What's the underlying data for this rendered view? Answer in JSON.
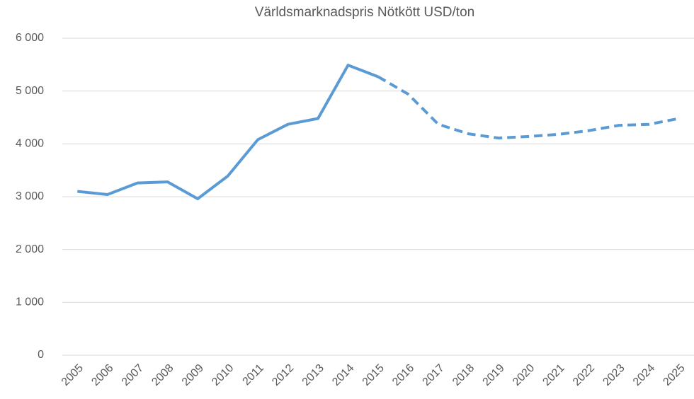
{
  "chart_data": {
    "type": "line",
    "title": "Världsmarknadspris Nötkött USD/ton",
    "categories": [
      "2005",
      "2006",
      "2007",
      "2008",
      "2009",
      "2010",
      "2011",
      "2012",
      "2013",
      "2014",
      "2015",
      "2016",
      "2017",
      "2018",
      "2019",
      "2020",
      "2021",
      "2022",
      "2023",
      "2024",
      "2025"
    ],
    "series": [
      {
        "color": "#5b9bd5",
        "dashed": false,
        "values": [
          3100,
          3040,
          3260,
          3280,
          2960,
          3390,
          4080,
          4370,
          4480,
          5490,
          5270,
          null,
          null,
          null,
          null,
          null,
          null,
          null,
          null,
          null,
          null
        ]
      },
      {
        "color": "#5b9bd5",
        "dashed": true,
        "values": [
          null,
          null,
          null,
          null,
          null,
          null,
          null,
          null,
          null,
          null,
          5270,
          4940,
          4370,
          4190,
          4110,
          4140,
          4180,
          4250,
          4350,
          4370,
          4480
        ]
      }
    ],
    "ylim": [
      0,
      6000
    ],
    "yticks": [
      0,
      {
        "value": 1000,
        "label": "1 000"
      },
      {
        "value": 2000,
        "label": "2 000"
      },
      {
        "value": 3000,
        "label": "3 000"
      },
      {
        "value": 4000,
        "label": "4 000"
      },
      {
        "value": 5000,
        "label": "5 000"
      },
      {
        "value": 6000,
        "label": "6 000"
      }
    ],
    "grid": true
  }
}
